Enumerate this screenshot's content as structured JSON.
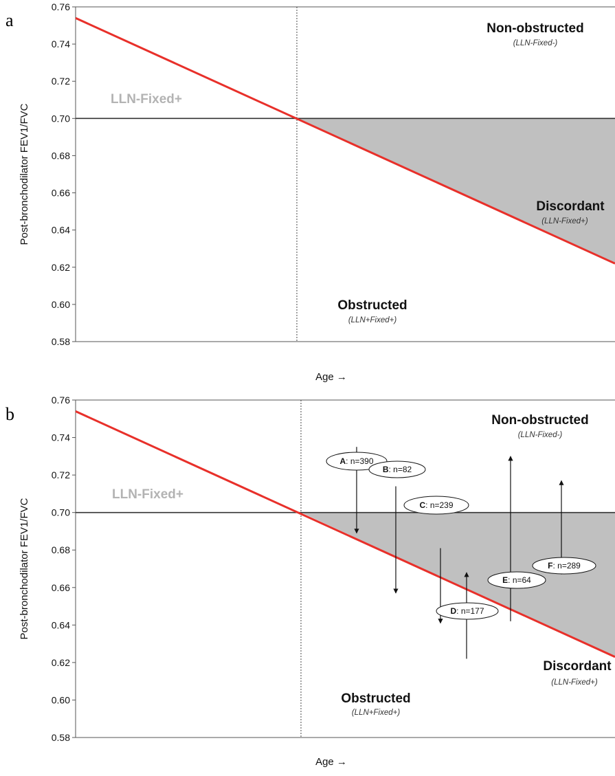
{
  "chart_data": [
    {
      "type": "line",
      "panel": "a",
      "xlabel": "Age →",
      "ylabel": "Post-bronchodilator FEV1/FVC",
      "ylim": [
        0.58,
        0.76
      ],
      "yticks": [
        "0.58",
        "0.60",
        "0.62",
        "0.64",
        "0.66",
        "0.68",
        "0.70",
        "0.72",
        "0.74",
        "0.76"
      ],
      "grid": false,
      "fixed_ratio": 0.7,
      "lln_line": {
        "y_start": 0.754,
        "y_at_cross": 0.7,
        "y_end": 0.622,
        "color": "#e8302a"
      },
      "shaded_color": "#c0c0c0",
      "labels": {
        "top_right": "Non-obstructed",
        "top_right_sub": "(LLN-Fixed-)",
        "top_left": "LLN-Fixed+",
        "discordant": "Discordant",
        "discordant_sub": "(LLN-Fixed+)",
        "bottom": "Obstructed",
        "bottom_sub": "(LLN+Fixed+)"
      }
    },
    {
      "type": "line",
      "panel": "b",
      "xlabel": "Age →",
      "ylabel": "Post-bronchodilator FEV1/FVC",
      "ylim": [
        0.58,
        0.76
      ],
      "yticks": [
        "0.58",
        "0.60",
        "0.62",
        "0.64",
        "0.66",
        "0.68",
        "0.70",
        "0.72",
        "0.74",
        "0.76"
      ],
      "grid": false,
      "fixed_ratio": 0.7,
      "lln_line": {
        "y_start": 0.754,
        "y_at_cross": 0.7,
        "y_end": 0.623,
        "color": "#e8302a"
      },
      "shaded_color": "#c0c0c0",
      "labels": {
        "top_right": "Non-obstructed",
        "top_right_sub": "(LLN-Fixed-)",
        "top_left": "LLN-Fixed+",
        "discordant": "Discordant",
        "discordant_sub": "(LLN-Fixed+)",
        "bottom": "Obstructed",
        "bottom_sub": "(LLN+Fixed+)"
      },
      "annotations": [
        {
          "id": "A",
          "text": "n=390",
          "from": 0.735,
          "to": 0.689
        },
        {
          "id": "B",
          "text": "n=82",
          "from": 0.714,
          "to": 0.657
        },
        {
          "id": "C",
          "text": "n=239",
          "from": 0.681,
          "to": 0.641
        },
        {
          "id": "D",
          "text": "n=177",
          "from": 0.622,
          "to": 0.668
        },
        {
          "id": "E",
          "text": "n=64",
          "from": 0.642,
          "to": 0.73
        },
        {
          "id": "F",
          "text": "n=289",
          "from": 0.667,
          "to": 0.717
        }
      ]
    }
  ]
}
